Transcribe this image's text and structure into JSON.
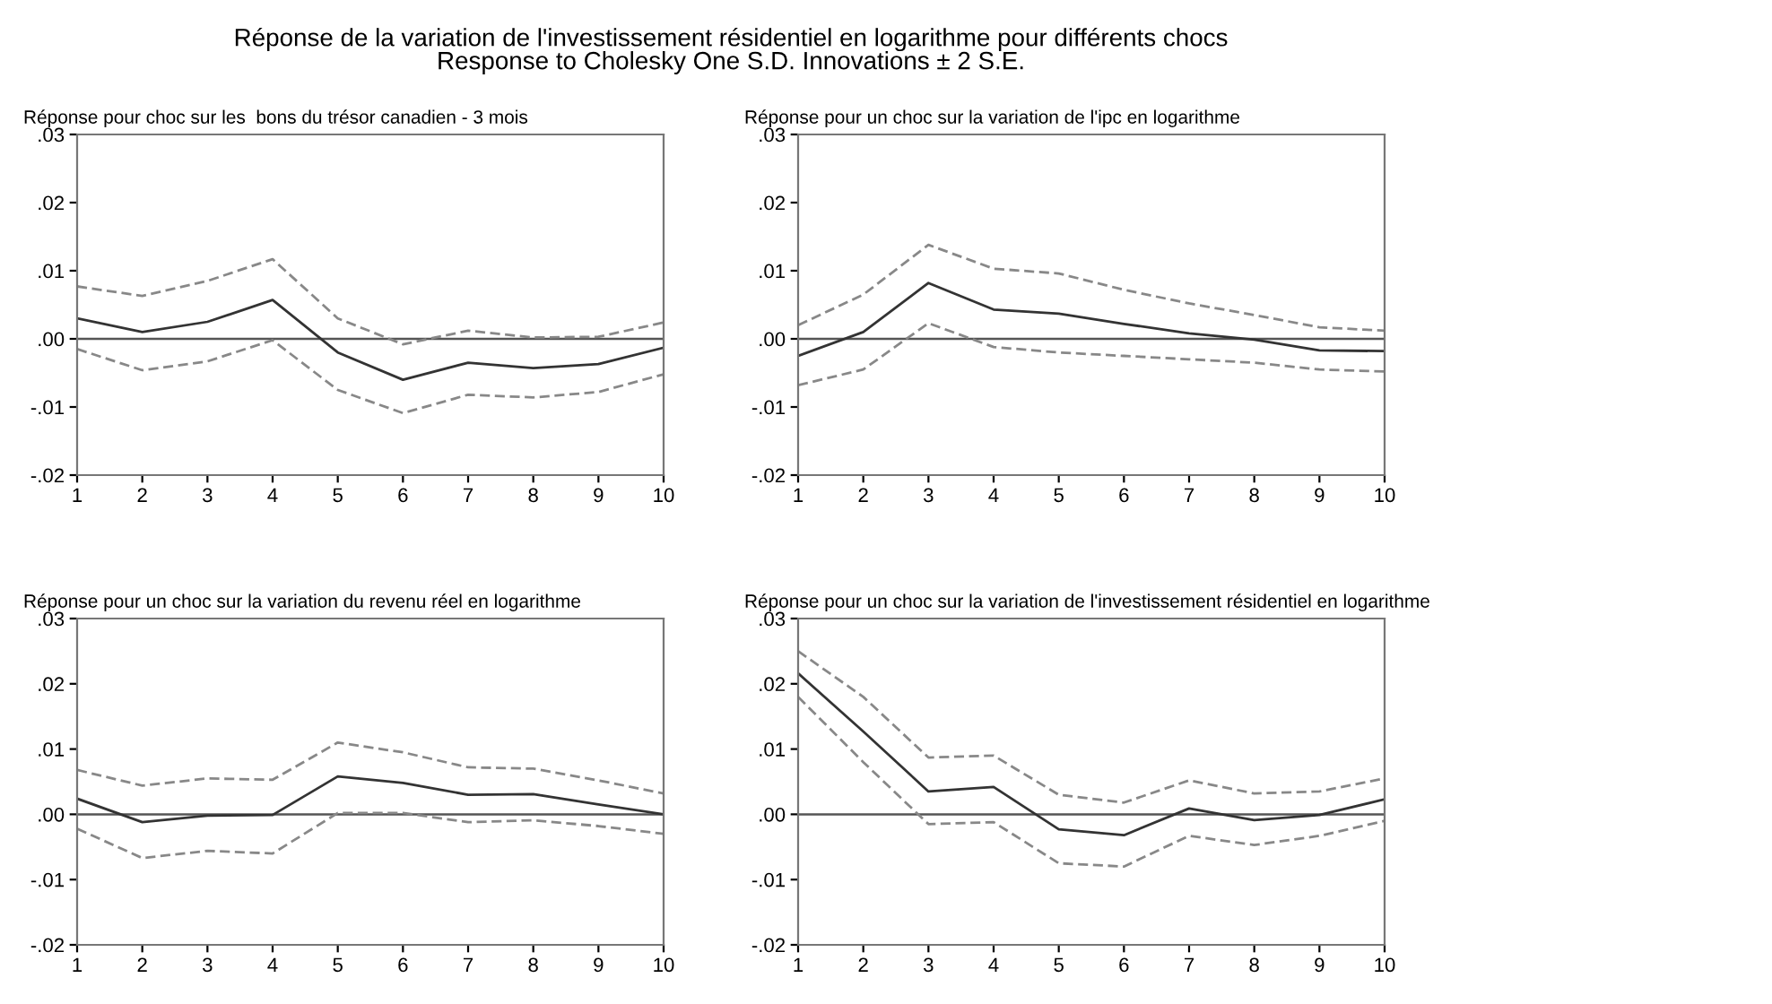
{
  "chart_data": [
    {
      "type": "line",
      "title": "Réponse pour choc sur les  bons du trésor canadien - 3 mois",
      "annotations": [
        "Réponse de la variation de l'investissement résidentiel en logarithme pour différents chocs",
        "Response to Cholesky One S.D. Innovations ± 2 S.E."
      ],
      "x": [
        1,
        2,
        3,
        4,
        5,
        6,
        7,
        8,
        9,
        10
      ],
      "xlim": [
        1,
        10
      ],
      "xticks": [
        1,
        2,
        3,
        4,
        5,
        6,
        7,
        8,
        9,
        10
      ],
      "ylim": [
        -0.02,
        0.03
      ],
      "yticks": [
        {
          "value": -0.02,
          "label": "-.02"
        },
        {
          "value": -0.01,
          "label": "-.01"
        },
        {
          "value": 0,
          "label": ".00"
        },
        {
          "value": 0.01,
          "label": ".01"
        },
        {
          "value": 0.02,
          "label": ".02"
        },
        {
          "value": 0.03,
          "label": ".03"
        }
      ],
      "grid": false,
      "legend": false,
      "ref_lines": [
        {
          "axis": "y",
          "value": 0,
          "color": "#555555"
        }
      ],
      "series": [
        {
          "color": "#333333",
          "line_style": "solid",
          "values": [
            0.003,
            0.001,
            0.0025,
            0.0057,
            -0.002,
            -0.006,
            -0.0035,
            -0.0043,
            -0.0037,
            -0.0013
          ]
        },
        {
          "color": "#888888",
          "line_style": "dashed",
          "values": [
            0.0077,
            0.0063,
            0.0085,
            0.0117,
            0.003,
            -0.0008,
            0.0012,
            0.0002,
            0.0003,
            0.0024
          ]
        },
        {
          "color": "#888888",
          "line_style": "dashed",
          "values": [
            -0.0015,
            -0.0046,
            -0.0033,
            -0.0002,
            -0.0075,
            -0.0109,
            -0.0082,
            -0.0086,
            -0.0078,
            -0.0052
          ]
        }
      ]
    },
    {
      "type": "line",
      "title": "Réponse pour un choc sur la variation de l'ipc en logarithme",
      "x": [
        1,
        2,
        3,
        4,
        5,
        6,
        7,
        8,
        9,
        10
      ],
      "xlim": [
        1,
        10
      ],
      "xticks": [
        1,
        2,
        3,
        4,
        5,
        6,
        7,
        8,
        9,
        10
      ],
      "ylim": [
        -0.02,
        0.03
      ],
      "yticks": [
        {
          "value": -0.02,
          "label": "-.02"
        },
        {
          "value": -0.01,
          "label": "-.01"
        },
        {
          "value": 0,
          "label": ".00"
        },
        {
          "value": 0.01,
          "label": ".01"
        },
        {
          "value": 0.02,
          "label": ".02"
        },
        {
          "value": 0.03,
          "label": ".03"
        }
      ],
      "grid": false,
      "legend": false,
      "ref_lines": [
        {
          "axis": "y",
          "value": 0,
          "color": "#555555"
        }
      ],
      "series": [
        {
          "color": "#333333",
          "line_style": "solid",
          "values": [
            -0.0025,
            0.001,
            0.0082,
            0.0043,
            0.0037,
            0.0022,
            0.0008,
            -0.0001,
            -0.0017,
            -0.0018
          ]
        },
        {
          "color": "#888888",
          "line_style": "dashed",
          "values": [
            0.002,
            0.0065,
            0.0138,
            0.0103,
            0.0096,
            0.0072,
            0.0052,
            0.0035,
            0.0017,
            0.0012
          ]
        },
        {
          "color": "#888888",
          "line_style": "dashed",
          "values": [
            -0.0068,
            -0.0045,
            0.0023,
            -0.0012,
            -0.002,
            -0.0025,
            -0.003,
            -0.0035,
            -0.0045,
            -0.0048
          ]
        }
      ]
    },
    {
      "type": "line",
      "title": "Réponse pour un choc sur la variation du revenu réel en logarithme",
      "x": [
        1,
        2,
        3,
        4,
        5,
        6,
        7,
        8,
        9,
        10
      ],
      "xlim": [
        1,
        10
      ],
      "xticks": [
        1,
        2,
        3,
        4,
        5,
        6,
        7,
        8,
        9,
        10
      ],
      "ylim": [
        -0.02,
        0.03
      ],
      "yticks": [
        {
          "value": -0.02,
          "label": "-.02"
        },
        {
          "value": -0.01,
          "label": "-.01"
        },
        {
          "value": 0,
          "label": ".00"
        },
        {
          "value": 0.01,
          "label": ".01"
        },
        {
          "value": 0.02,
          "label": ".02"
        },
        {
          "value": 0.03,
          "label": ".03"
        }
      ],
      "grid": false,
      "legend": false,
      "ref_lines": [
        {
          "axis": "y",
          "value": 0,
          "color": "#555555"
        }
      ],
      "series": [
        {
          "color": "#333333",
          "line_style": "solid",
          "values": [
            0.0024,
            -0.0012,
            -0.0002,
            -0.0001,
            0.0058,
            0.0048,
            0.003,
            0.0031,
            0.0015,
            0
          ]
        },
        {
          "color": "#888888",
          "line_style": "dashed",
          "values": [
            0.0068,
            0.0044,
            0.0055,
            0.0053,
            0.011,
            0.0095,
            0.0072,
            0.007,
            0.0052,
            0.0032
          ]
        },
        {
          "color": "#888888",
          "line_style": "dashed",
          "values": [
            -0.0022,
            -0.0067,
            -0.0056,
            -0.006,
            0.0002,
            0.0002,
            -0.0012,
            -0.0009,
            -0.0018,
            -0.003
          ]
        }
      ]
    },
    {
      "type": "line",
      "title": "Réponse pour un choc sur la variation de l'investissement résidentiel en logarithme",
      "x": [
        1,
        2,
        3,
        4,
        5,
        6,
        7,
        8,
        9,
        10
      ],
      "xlim": [
        1,
        10
      ],
      "xticks": [
        1,
        2,
        3,
        4,
        5,
        6,
        7,
        8,
        9,
        10
      ],
      "ylim": [
        -0.02,
        0.03
      ],
      "yticks": [
        {
          "value": -0.02,
          "label": "-.02"
        },
        {
          "value": -0.01,
          "label": "-.01"
        },
        {
          "value": 0,
          "label": ".00"
        },
        {
          "value": 0.01,
          "label": ".01"
        },
        {
          "value": 0.02,
          "label": ".02"
        },
        {
          "value": 0.03,
          "label": ".03"
        }
      ],
      "grid": false,
      "legend": false,
      "ref_lines": [
        {
          "axis": "y",
          "value": 0,
          "color": "#555555"
        }
      ],
      "series": [
        {
          "color": "#333333",
          "line_style": "solid",
          "values": [
            0.0216,
            0.0127,
            0.0035,
            0.0042,
            -0.0023,
            -0.0032,
            0.0009,
            -0.0009,
            -0.0001,
            0.0023
          ]
        },
        {
          "color": "#888888",
          "line_style": "dashed",
          "values": [
            0.025,
            0.018,
            0.0087,
            0.009,
            0.003,
            0.0018,
            0.0052,
            0.0032,
            0.0035,
            0.0055
          ]
        },
        {
          "color": "#888888",
          "line_style": "dashed",
          "values": [
            0.018,
            0.008,
            -0.0015,
            -0.0012,
            -0.0075,
            -0.008,
            -0.0033,
            -0.0047,
            -0.0033,
            -0.001
          ]
        }
      ]
    }
  ]
}
